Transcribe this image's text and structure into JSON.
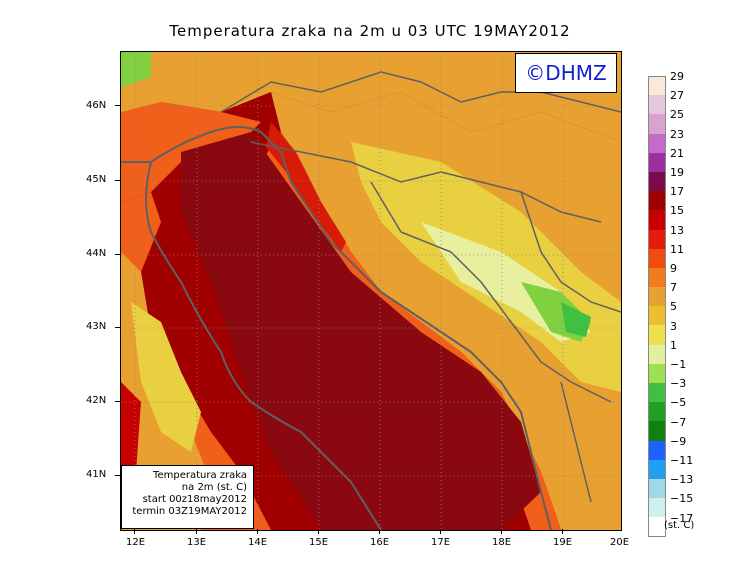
{
  "title": "Temperatura zraka na 2m u 03 UTC 19MAY2012",
  "logo": "©DHMZ",
  "legend_box": [
    "Temperatura zraka",
    "na 2m (st. C)",
    "start 00z18may2012",
    "termin 03Z19MAY2012"
  ],
  "lat_ticks": [
    "46N",
    "45N",
    "44N",
    "43N",
    "42N",
    "41N"
  ],
  "lon_ticks": [
    "12E",
    "13E",
    "14E",
    "15E",
    "16E",
    "17E",
    "18E",
    "19E",
    "20E"
  ],
  "colorbar_labels": [
    "29",
    "27",
    "25",
    "23",
    "21",
    "19",
    "17",
    "15",
    "13",
    "11",
    "9",
    "7",
    "5",
    "3",
    "1",
    "−1",
    "−3",
    "−5",
    "−7",
    "−9",
    "−11",
    "−13",
    "−15",
    "−17"
  ],
  "colorbar_colors": [
    "#fbe9d8",
    "#e5c6dd",
    "#d9a2d2",
    "#c46ac9",
    "#9a2fa0",
    "#7a0a4a",
    "#a00000",
    "#c80000",
    "#e41a0a",
    "#f04c10",
    "#f07c1c",
    "#e8a030",
    "#e8c030",
    "#f0e050",
    "#e0f0a0",
    "#a0e050",
    "#40c040",
    "#20a020",
    "#108010",
    "#2060ff",
    "#20a0f0",
    "#a0d8e8",
    "#d0f0f0",
    "#ffffff"
  ],
  "unit": "(st. C)",
  "colors": {
    "sea": "#a00000",
    "sea_deep": "#7a0a12",
    "coast_warm": "#d81a08",
    "orange": "#f0601a",
    "amber": "#e8a030",
    "yellow": "#e8d040",
    "pale": "#e8f0a0",
    "green": "#80d040",
    "border": "#606060"
  }
}
